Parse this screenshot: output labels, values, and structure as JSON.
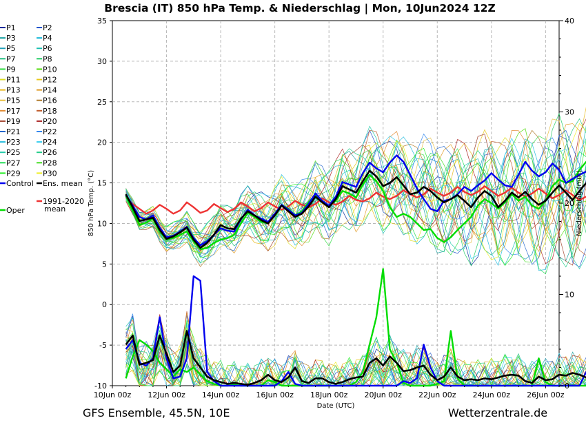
{
  "chart_data": {
    "type": "line",
    "title": "Brescia  (IT)  850 hPa Temp. & Niederschlag | Mon, 10Jun2024 12Z",
    "xlabel": "Date (UTC)",
    "ylabel": "850 hPa Temp. (°C)",
    "ylabel_right": "Niederschlag (mm)",
    "ylim": [
      -10,
      35
    ],
    "ylim_right": [
      0,
      40
    ],
    "yticks": [
      "-10",
      "-5",
      "0",
      "5",
      "10",
      "15",
      "20",
      "25",
      "30",
      "35"
    ],
    "yticks_right": [
      "0",
      "10",
      "20",
      "30",
      "40"
    ],
    "xticks": [
      "10Jun 00z",
      "12Jun 00z",
      "14Jun 00z",
      "16Jun 00z",
      "18Jun 00z",
      "20Jun 00z",
      "22Jun 00z",
      "24Jun 00z",
      "26Jun 00z"
    ],
    "x_range_hours": [
      0,
      396
    ],
    "x_start_hour": 12,
    "step_hours": 6,
    "footer_left": "GFS Ensemble, 45.5N, 10E",
    "footer_right": "Wetterzentrale.de",
    "series": [
      {
        "name": "Control",
        "color": "#0000ee",
        "temp": [
          13.5,
          12.2,
          10.8,
          10.5,
          11.0,
          9.5,
          8.3,
          8.5,
          9.0,
          9.6,
          8.2,
          7.3,
          7.8,
          8.6,
          9.4,
          9.1,
          9.0,
          10.5,
          11.7,
          11.0,
          10.6,
          10.2,
          11.2,
          12.3,
          11.7,
          11.0,
          11.3,
          12.4,
          13.7,
          12.8,
          12.2,
          13.3,
          15.1,
          14.8,
          14.5,
          16.2,
          17.5,
          16.8,
          16.3,
          17.5,
          18.4,
          17.6,
          16.0,
          14.3,
          13.0,
          11.8,
          11.5,
          12.8,
          13.0,
          13.6,
          14.5,
          14.0,
          14.7,
          15.3,
          16.2,
          15.4,
          14.7,
          14.5,
          16.0,
          17.6,
          16.5,
          15.8,
          16.3,
          17.4,
          16.6,
          15.0,
          15.5,
          16.0,
          16.4,
          16.0,
          14.5,
          13.2
        ],
        "precip": [
          4.0,
          5.0,
          2.5,
          2.2,
          3.0,
          7.5,
          3.0,
          0.8,
          1.0,
          3.0,
          12.0,
          11.5,
          1.5,
          0.5,
          0.0,
          0.0,
          0.0,
          0.0,
          0.0,
          0.0,
          0.0,
          0.0,
          0.0,
          0.5,
          1.5,
          0.2,
          0.0,
          0.0,
          0.0,
          0.0,
          0.0,
          0.0,
          0.0,
          0.0,
          0.0,
          0.0,
          0.0,
          0.0,
          0.0,
          0.0,
          0.0,
          0.5,
          0.3,
          0.8,
          4.5,
          2.0,
          0.5,
          0.0,
          0.0,
          0.0,
          0.0,
          0.0,
          0.0,
          0.0,
          0.0,
          0.0,
          0.0,
          0.0,
          0.0,
          0.0,
          0.0,
          0.0,
          0.0,
          0.0,
          0.0,
          0.0,
          0.0,
          0.0,
          1.5,
          0.5,
          0.0,
          0.5
        ]
      },
      {
        "name": "Ens. mean",
        "color": "#000000",
        "temp": [
          13.6,
          12.0,
          10.3,
          10.5,
          10.7,
          9.2,
          8.1,
          8.4,
          8.9,
          9.5,
          8.0,
          7.0,
          7.6,
          8.6,
          9.8,
          9.4,
          9.3,
          10.6,
          11.5,
          11.0,
          10.4,
          10.0,
          11.0,
          12.2,
          11.5,
          10.8,
          11.2,
          12.1,
          13.3,
          12.6,
          12.0,
          13.0,
          14.6,
          14.2,
          13.8,
          15.2,
          16.5,
          15.8,
          14.6,
          15.0,
          15.7,
          14.7,
          13.6,
          13.8,
          14.5,
          14.0,
          13.2,
          12.6,
          13.0,
          13.5,
          12.8,
          12.0,
          13.2,
          14.0,
          13.4,
          12.0,
          12.8,
          13.8,
          13.2,
          13.9,
          13.0,
          12.3,
          12.8,
          13.8,
          14.7,
          13.8,
          12.9,
          14.0,
          15.0,
          14.6,
          13.8,
          14.4
        ],
        "precip": [
          4.5,
          5.5,
          2.3,
          2.5,
          2.8,
          5.5,
          3.5,
          1.5,
          2.2,
          6.0,
          3.0,
          2.0,
          1.0,
          0.6,
          0.4,
          0.2,
          0.3,
          0.2,
          0.1,
          0.3,
          0.6,
          1.2,
          0.6,
          0.4,
          0.9,
          2.0,
          0.5,
          0.3,
          0.8,
          0.8,
          0.4,
          0.2,
          0.4,
          0.7,
          0.9,
          1.0,
          2.5,
          3.0,
          2.2,
          3.2,
          2.5,
          1.6,
          1.7,
          2.0,
          2.2,
          1.2,
          0.6,
          1.0,
          2.0,
          1.0,
          0.6,
          0.7,
          0.6,
          0.8,
          0.7,
          0.9,
          1.1,
          1.2,
          1.1,
          0.5,
          0.3,
          1.0,
          0.6,
          0.7,
          1.2,
          1.1,
          1.4,
          1.2,
          0.9,
          0.8,
          0.6,
          0.8
        ]
      },
      {
        "name": "1991-2020 mean",
        "color": "#ee3333",
        "temp": [
          13.2,
          12.4,
          11.8,
          11.2,
          11.6,
          12.3,
          11.8,
          11.2,
          11.6,
          12.6,
          12.0,
          11.3,
          11.6,
          12.4,
          11.9,
          11.4,
          11.8,
          12.6,
          12.1,
          11.5,
          11.9,
          12.6,
          12.1,
          11.7,
          12.1,
          12.8,
          12.3,
          12.0,
          12.4,
          13.1,
          12.6,
          12.3,
          12.7,
          13.4,
          12.9,
          12.7,
          13.1,
          13.8,
          13.3,
          13.0,
          13.4,
          14.1,
          13.6,
          13.2,
          13.6,
          14.3,
          13.8,
          13.4,
          13.8,
          14.5,
          13.9,
          13.5,
          13.9,
          14.6,
          14.0,
          13.4,
          13.8,
          14.4,
          13.8,
          13.3,
          13.7,
          14.3,
          13.7,
          13.1,
          13.5,
          14.1,
          13.5,
          12.9,
          13.3,
          13.9,
          13.2,
          12.8
        ],
        "precip": []
      },
      {
        "name": "Oper",
        "color": "#00dd00",
        "temp": [
          13.4,
          11.6,
          9.8,
          10.1,
          10.6,
          9.0,
          8.0,
          8.2,
          8.6,
          9.0,
          7.8,
          6.8,
          7.0,
          7.6,
          8.0,
          8.2,
          8.6,
          10.0,
          11.3,
          10.8,
          10.2,
          10.0,
          11.1,
          12.3,
          11.8,
          11.0,
          11.5,
          12.6,
          13.5,
          12.8,
          12.2,
          12.8,
          14.0,
          13.7,
          13.2,
          14.8,
          16.0,
          15.2,
          14.0,
          12.0,
          10.8,
          11.2,
          10.8,
          10.0,
          9.2,
          9.3,
          8.2,
          7.7,
          8.3,
          9.2,
          10.0,
          10.8,
          12.2,
          13.0,
          12.5,
          11.8,
          12.6,
          13.6,
          12.8,
          13.3,
          12.2,
          11.8,
          12.8,
          14.6,
          15.4,
          15.0,
          15.2,
          16.6,
          17.6,
          16.4,
          15.0,
          14.2
        ],
        "precip": [
          0.8,
          3.2,
          5.0,
          4.5,
          3.8,
          2.5,
          1.8,
          1.0,
          1.8,
          1.5,
          2.0,
          1.2,
          0.5,
          0.2,
          0.0,
          0.0,
          0.1,
          0.0,
          0.0,
          0.0,
          0.0,
          0.6,
          0.4,
          0.0,
          0.0,
          0.0,
          0.0,
          0.0,
          0.0,
          0.0,
          0.0,
          0.0,
          0.0,
          0.0,
          0.4,
          1.5,
          4.5,
          7.5,
          12.8,
          4.0,
          2.5,
          0.3,
          0.0,
          0.0,
          0.0,
          0.0,
          0.2,
          0.5,
          6.0,
          0.8,
          0.0,
          0.0,
          0.0,
          0.0,
          0.0,
          0.0,
          0.0,
          0.0,
          0.0,
          0.0,
          0.0,
          3.0,
          0.4,
          0.0,
          0.0,
          0.0,
          0.0,
          0.0,
          0.0,
          0.0,
          3.5,
          0.6
        ]
      }
    ],
    "members": [
      {
        "name": "P1",
        "color": "#0a2a9a"
      },
      {
        "name": "P2",
        "color": "#2255cc"
      },
      {
        "name": "P3",
        "color": "#18a0a0"
      },
      {
        "name": "P4",
        "color": "#1ab8d8"
      },
      {
        "name": "P5",
        "color": "#20a0b8"
      },
      {
        "name": "P6",
        "color": "#19c0b0"
      },
      {
        "name": "P7",
        "color": "#20c080"
      },
      {
        "name": "P8",
        "color": "#22cc66"
      },
      {
        "name": "P9",
        "color": "#33dd44"
      },
      {
        "name": "P10",
        "color": "#55dd11"
      },
      {
        "name": "P11",
        "color": "#dddd22"
      },
      {
        "name": "P12",
        "color": "#e8c81a"
      },
      {
        "name": "P13",
        "color": "#e8b81a"
      },
      {
        "name": "P14",
        "color": "#e09a22"
      },
      {
        "name": "P15",
        "color": "#e8c040"
      },
      {
        "name": "P16",
        "color": "#b07a2a"
      },
      {
        "name": "P17",
        "color": "#e08a30"
      },
      {
        "name": "P18",
        "color": "#c05a2a"
      },
      {
        "name": "P19",
        "color": "#a0402a"
      },
      {
        "name": "P20",
        "color": "#aa2222"
      },
      {
        "name": "P21",
        "color": "#2266cc"
      },
      {
        "name": "P22",
        "color": "#3388ee"
      },
      {
        "name": "P23",
        "color": "#22bbdd"
      },
      {
        "name": "P24",
        "color": "#33ccee"
      },
      {
        "name": "P25",
        "color": "#22ccaa"
      },
      {
        "name": "P26",
        "color": "#22cc88"
      },
      {
        "name": "P27",
        "color": "#22dd55"
      },
      {
        "name": "P28",
        "color": "#44dd22"
      },
      {
        "name": "P29",
        "color": "#22ee22"
      },
      {
        "name": "P30",
        "color": "#eeee22"
      }
    ],
    "legend_extra": [
      "Control",
      "Ens. mean",
      "1991-2020",
      "mean",
      "Oper"
    ]
  }
}
